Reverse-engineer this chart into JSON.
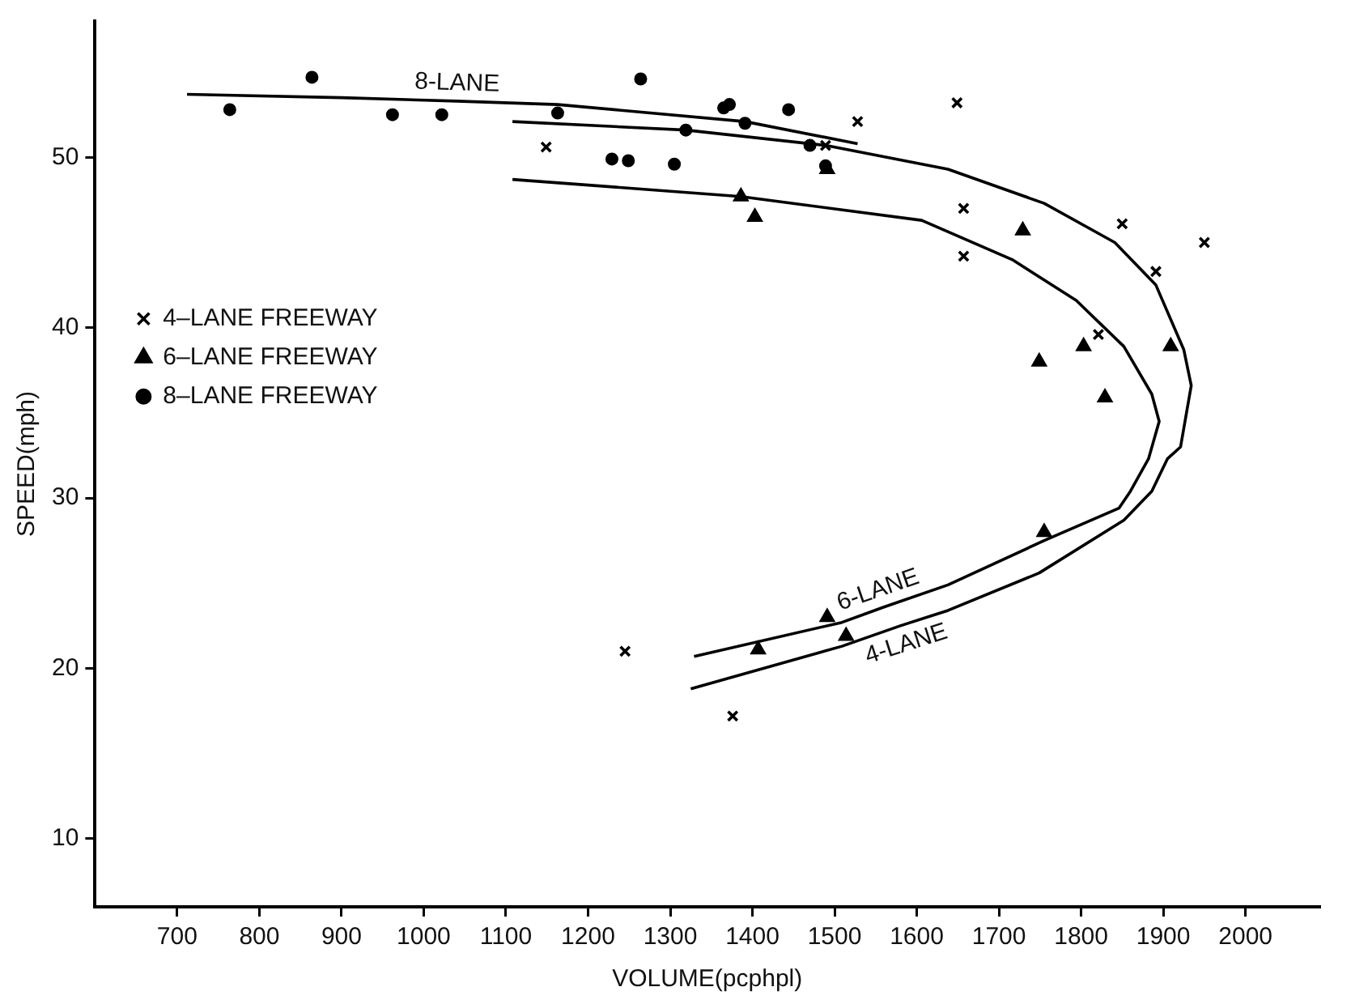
{
  "chart_data": {
    "type": "scatter",
    "xlabel": "VOLUME(pcphpl)",
    "ylabel": "SPEED(mph)",
    "xlim": [
      600,
      2090
    ],
    "xticks": [
      700,
      800,
      900,
      1000,
      1100,
      1200,
      1300,
      1400,
      1500,
      1600,
      1700,
      1800,
      1900,
      2000
    ],
    "ylim": [
      6,
      58
    ],
    "yticks": [
      10,
      20,
      30,
      40,
      50
    ],
    "grid": false,
    "legend": "left",
    "series": [
      {
        "name": "4–LANE FREEWAY",
        "color": "#000000",
        "marker": "cross",
        "x": [
          1149,
          1528,
          1649,
          1489,
          1657,
          1657,
          1850,
          1950,
          1891,
          1821,
          1245,
          1376
        ],
        "values": [
          50.6,
          52.1,
          53.2,
          50.7,
          47.0,
          44.2,
          46.1,
          45.0,
          43.3,
          39.6,
          21.0,
          17.2
        ]
      },
      {
        "name": "6–LANE FREEWAY",
        "color": "#000000",
        "marker": "triangle",
        "x": [
          1386,
          1403,
          1491,
          1729,
          1749,
          1803,
          1909,
          1829,
          1755,
          1491,
          1407,
          1514
        ],
        "values": [
          47.7,
          46.5,
          49.3,
          45.7,
          38.0,
          38.9,
          38.9,
          35.9,
          28.0,
          23.0,
          21.1,
          21.9
        ]
      },
      {
        "name": "8–LANE FREEWAY",
        "color": "#000000",
        "marker": "circle",
        "x": [
          864,
          764,
          962,
          1022,
          1163,
          1264,
          1365,
          1372,
          1391,
          1319,
          1229,
          1249,
          1305,
          1444,
          1470,
          1489
        ],
        "values": [
          54.7,
          52.8,
          52.5,
          52.5,
          52.6,
          54.6,
          52.9,
          53.1,
          52.0,
          51.6,
          49.9,
          49.8,
          49.6,
          52.8,
          50.7,
          49.5
        ]
      },
      {
        "type": "line",
        "color": "#000000",
        "marker": "none",
        "x": [
          712,
          900,
          1040,
          1163,
          1391,
          1528
        ],
        "values": [
          53.7,
          53.5,
          53.3,
          53.1,
          52.1,
          50.8
        ]
      },
      {
        "type": "line",
        "color": "#000000",
        "marker": "none",
        "x": [
          1108,
          1319,
          1489,
          1638,
          1755,
          1841,
          1891,
          1925,
          1934,
          1921,
          1905,
          1886,
          1852,
          1749,
          1638,
          1580,
          1509,
          1325
        ],
        "values": [
          52.1,
          51.6,
          50.7,
          49.3,
          47.3,
          45.0,
          42.5,
          38.7,
          36.6,
          33.0,
          32.3,
          30.4,
          28.7,
          25.6,
          23.4,
          22.5,
          21.3,
          18.8
        ]
      },
      {
        "type": "line",
        "color": "#000000",
        "marker": "none",
        "x": [
          1108,
          1386,
          1606,
          1716,
          1794,
          1852,
          1886,
          1895,
          1882,
          1860,
          1846,
          1755,
          1638,
          1560,
          1509,
          1329
        ],
        "values": [
          48.7,
          47.7,
          46.3,
          44.0,
          41.6,
          38.9,
          36.1,
          34.5,
          32.3,
          30.4,
          29.4,
          27.5,
          24.9,
          23.6,
          22.7,
          20.7
        ]
      }
    ],
    "annotations": [
      {
        "text": "8-LANE",
        "x": 1040,
        "y": 53.3
      },
      {
        "text": "6-LANE",
        "x": 1560,
        "y": 23.6
      },
      {
        "text": "4-LANE",
        "x": 1580,
        "y": 22.5
      }
    ]
  }
}
